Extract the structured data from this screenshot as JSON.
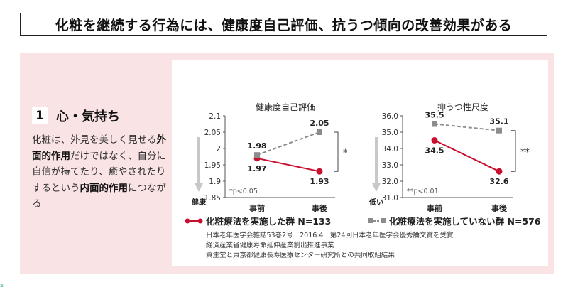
{
  "header": {
    "title": "化粧を継続する行為には、健康度自己評価、抗うつ傾向の改善効果がある"
  },
  "section": {
    "number": "1",
    "title": "心・気持ち",
    "desc_parts": [
      {
        "t": "化粧は、外見を美しく見せる",
        "b": false
      },
      {
        "t": "外面的作用",
        "b": true
      },
      {
        "t": "だけではなく、自分に自信が持てたり、癒やされたりするという",
        "b": false
      },
      {
        "t": "内面的作用",
        "b": true
      },
      {
        "t": "につながる",
        "b": false
      }
    ]
  },
  "chart_data": [
    {
      "type": "line",
      "title": "健康度自己評価",
      "categories": [
        "事前",
        "事後"
      ],
      "ylim": [
        1.85,
        2.1
      ],
      "yticks": [
        "1.85",
        "1.9",
        "1.95",
        "2",
        "2.05",
        "2.1"
      ],
      "ytick_values": [
        1.85,
        1.9,
        1.95,
        2.0,
        2.05,
        2.1
      ],
      "y_arrow_label": "健康",
      "significance": "*",
      "note": "*p<0.05",
      "series": [
        {
          "name": "化粧療法を実施した群",
          "values": [
            1.97,
            1.93
          ],
          "labels": [
            "1.97",
            "1.93"
          ],
          "color": "#c8102e",
          "style": "solid"
        },
        {
          "name": "化粧療法を実施していない群",
          "values": [
            1.98,
            2.05
          ],
          "labels": [
            "1.98",
            "2.05"
          ],
          "color": "#8c8c8c",
          "style": "dashed"
        }
      ]
    },
    {
      "type": "line",
      "title": "抑うつ性尺度",
      "categories": [
        "事前",
        "事後"
      ],
      "ylim": [
        31.0,
        36.0
      ],
      "yticks": [
        "31.0",
        "32.0",
        "33.0",
        "34.0",
        "35.0",
        "36.0"
      ],
      "ytick_values": [
        31,
        32,
        33,
        34,
        35,
        36
      ],
      "y_arrow_label": "低い",
      "significance": "**",
      "note": "**p<0.01",
      "series": [
        {
          "name": "化粧療法を実施した群",
          "values": [
            34.5,
            32.6
          ],
          "labels": [
            "34.5",
            "32.6"
          ],
          "color": "#c8102e",
          "style": "solid"
        },
        {
          "name": "化粧療法を実施していない群",
          "values": [
            35.5,
            35.1
          ],
          "labels": [
            "35.5",
            "35.1"
          ],
          "color": "#8c8c8c",
          "style": "dashed"
        }
      ]
    }
  ],
  "legend": [
    {
      "label": "化粧療法を実施した群 N=133",
      "color": "#c8102e"
    },
    {
      "label": "化粧療法を実施していない群 N=576",
      "color": "#8c8c8c"
    }
  ],
  "sources": [
    "日本老年医学会雑誌53巻2号　2016.4　第24回日本老年医学会優秀論文賞を受賞",
    "経済産業省健康寿命延伸産業創出推進事業",
    "資生堂と東京都健康長寿医療センター研究所との共同取組結果"
  ],
  "corner_mark": "al"
}
